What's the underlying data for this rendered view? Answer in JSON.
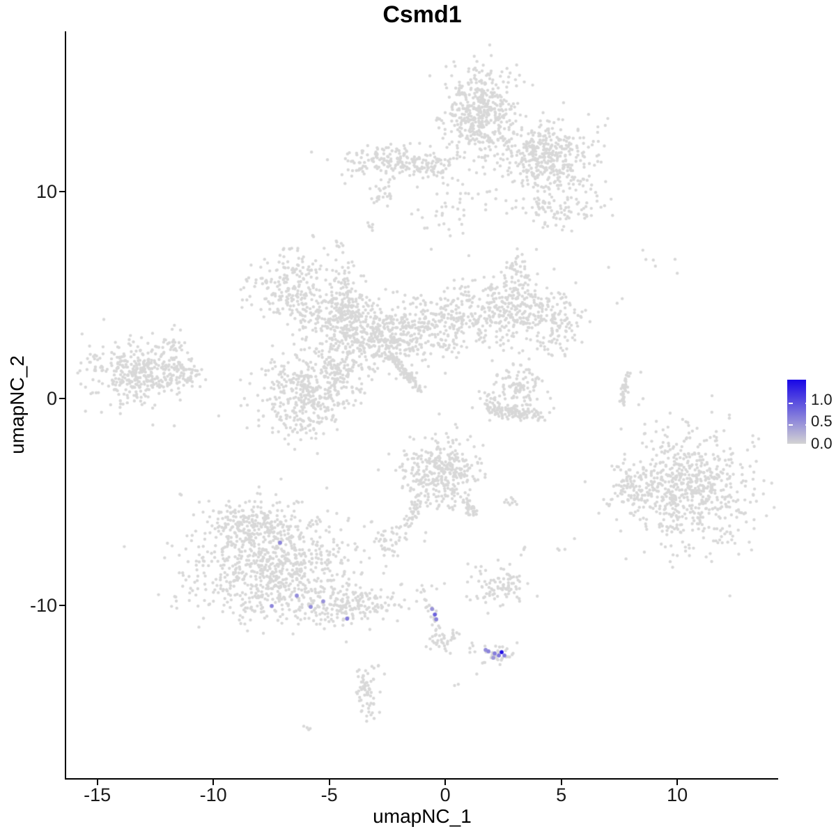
{
  "title": "Csmd1",
  "axes": {
    "x": {
      "label": "umapNC_1",
      "ticks": [
        "-15",
        "-10",
        "-5",
        "0",
        "5",
        "10"
      ],
      "tick_values": [
        -15,
        -10,
        -5,
        0,
        5,
        10
      ],
      "range": [
        -16.34,
        14.35
      ]
    },
    "y": {
      "label": "umapNC_2",
      "ticks": [
        "10",
        "0",
        "-10"
      ],
      "tick_values": [
        10,
        0,
        -10
      ],
      "range": [
        -18.35,
        17.74
      ]
    }
  },
  "legend": {
    "labels": [
      "1.0",
      "0.5",
      "0.0"
    ],
    "label_values": [
      1.0,
      0.5,
      0.0
    ],
    "scale_min": 0.0,
    "scale_max": 1.45,
    "low_color": "#D3D3D3",
    "high_color": "#1806E6"
  },
  "colors": {
    "background": "#FFFFFF",
    "point_gray": "#D8D8D8",
    "axis": "#000000",
    "text": "#1A1A1A"
  },
  "chart_data": {
    "type": "scatter",
    "title": "Csmd1",
    "xlabel": "umapNC_1",
    "ylabel": "umapNC_2",
    "xlim": [
      -16.34,
      14.35
    ],
    "ylim": [
      -18.35,
      17.74
    ],
    "grid": false,
    "legend_position": "right",
    "point_radius_px": 2.2,
    "highlight_radius_px": 2.9,
    "seed": 123456,
    "background_clusters": [
      {
        "name": "top-main",
        "type": "blob",
        "cx": 1.55,
        "cy": 13.9,
        "sdx": 0.8,
        "sdy": 1.2,
        "n": 450
      },
      {
        "name": "top-right-lobe",
        "type": "blob",
        "cx": 4.3,
        "cy": 11.7,
        "sdx": 1.0,
        "sdy": 0.85,
        "n": 380
      },
      {
        "name": "top-left-arm",
        "type": "blob",
        "cx": -2.3,
        "cy": 11.45,
        "sdx": 0.95,
        "sdy": 0.4,
        "n": 160
      },
      {
        "name": "top-arm-bridge",
        "type": "streak",
        "x1": -1.2,
        "y1": 11.2,
        "x2": 0.5,
        "y2": 11.25,
        "jitter": 0.25,
        "n": 50
      },
      {
        "name": "top-left-dots",
        "type": "blob",
        "cx": -3.7,
        "cy": 11.2,
        "sdx": 0.35,
        "sdy": 0.3,
        "n": 10
      },
      {
        "name": "top-below-left-small",
        "type": "blob",
        "cx": -2.8,
        "cy": 9.9,
        "sdx": 0.3,
        "sdy": 0.3,
        "n": 22
      },
      {
        "name": "top-below-left-tiny",
        "type": "blob",
        "cx": -3.25,
        "cy": 8.4,
        "sdx": 0.15,
        "sdy": 0.15,
        "n": 6
      },
      {
        "name": "top-below-scatter",
        "type": "blob",
        "cx": 0.2,
        "cy": 9.0,
        "sdx": 0.9,
        "sdy": 0.7,
        "n": 45
      },
      {
        "name": "top-right-lower",
        "type": "blob",
        "cx": 4.85,
        "cy": 9.2,
        "sdx": 0.9,
        "sdy": 0.55,
        "n": 90
      },
      {
        "name": "top-right-dots",
        "type": "blob",
        "cx": 5.9,
        "cy": 10.45,
        "sdx": 0.3,
        "sdy": 0.3,
        "n": 12
      },
      {
        "name": "mid-upperleft",
        "type": "blob",
        "cx": -6.6,
        "cy": 5.4,
        "sdx": 1.0,
        "sdy": 0.75,
        "n": 210
      },
      {
        "name": "mid-arm1",
        "type": "blob",
        "cx": -5.15,
        "cy": 4.05,
        "sdx": 0.8,
        "sdy": 0.5,
        "n": 110
      },
      {
        "name": "mid-core1",
        "type": "blob",
        "cx": -3.8,
        "cy": 3.5,
        "sdx": 0.85,
        "sdy": 0.8,
        "n": 260
      },
      {
        "name": "mid-core2",
        "type": "blob",
        "cx": -2.2,
        "cy": 2.85,
        "sdx": 0.8,
        "sdy": 0.65,
        "n": 210
      },
      {
        "name": "mid-up-arm",
        "type": "streak",
        "x1": -4.45,
        "y1": 6.3,
        "x2": -4.25,
        "y2": 4.45,
        "jitter": 0.3,
        "n": 45
      },
      {
        "name": "mid-up-dots",
        "type": "blob",
        "cx": -4.5,
        "cy": 7.3,
        "sdx": 0.2,
        "sdy": 0.2,
        "n": 8
      },
      {
        "name": "mid-bridge",
        "type": "blob",
        "cx": -0.9,
        "cy": 3.45,
        "sdx": 0.8,
        "sdy": 0.5,
        "n": 60
      },
      {
        "name": "mid-right1",
        "type": "blob",
        "cx": 0.3,
        "cy": 4.05,
        "sdx": 1.0,
        "sdy": 0.65,
        "n": 160
      },
      {
        "name": "mid-right2",
        "type": "blob",
        "cx": 2.75,
        "cy": 4.2,
        "sdx": 1.0,
        "sdy": 0.9,
        "n": 260
      },
      {
        "name": "mid-right3",
        "type": "blob",
        "cx": 4.85,
        "cy": 3.7,
        "sdx": 0.55,
        "sdy": 0.8,
        "n": 110
      },
      {
        "name": "mid-right-uparm",
        "type": "streak",
        "x1": 2.9,
        "y1": 5.1,
        "x2": 3.1,
        "y2": 6.75,
        "jitter": 0.3,
        "n": 50
      },
      {
        "name": "mid-below-scatter",
        "type": "blob",
        "cx": 0.1,
        "cy": 2.5,
        "sdx": 0.8,
        "sdy": 0.5,
        "n": 30
      },
      {
        "name": "mid-streak",
        "type": "streak",
        "x1": -2.45,
        "y1": 2.15,
        "x2": -1.1,
        "y2": 0.4,
        "jitter": 0.1,
        "n": 90
      },
      {
        "name": "mid-lower-arm",
        "type": "blob",
        "cx": -4.45,
        "cy": 1.6,
        "sdx": 0.55,
        "sdy": 0.8,
        "n": 110
      },
      {
        "name": "mid-lowerleft",
        "type": "blob",
        "cx": -5.9,
        "cy": 0.55,
        "sdx": 1.05,
        "sdy": 0.85,
        "n": 330
      },
      {
        "name": "mid-lowerleft-tail",
        "type": "blob",
        "cx": -6.05,
        "cy": -1.1,
        "sdx": 0.7,
        "sdy": 0.45,
        "n": 70
      },
      {
        "name": "mid-above-dots",
        "type": "blob",
        "cx": -6.65,
        "cy": 7.0,
        "sdx": 0.25,
        "sdy": 0.35,
        "n": 6
      },
      {
        "name": "mid-above-dots2",
        "type": "blob",
        "cx": -5.7,
        "cy": 7.9,
        "sdx": 0.15,
        "sdy": 0.15,
        "n": 3
      },
      {
        "name": "horseshoe-top",
        "type": "blob",
        "cx": 3.2,
        "cy": 0.8,
        "sdx": 0.5,
        "sdy": 0.45,
        "n": 70
      },
      {
        "name": "horseshoe-mid",
        "type": "blob",
        "cx": 2.95,
        "cy": 0.0,
        "sdx": 0.9,
        "sdy": 0.5,
        "n": 45
      },
      {
        "name": "horseshoe-arc",
        "type": "streak",
        "x1": 2.0,
        "y1": -0.55,
        "x2": 4.0,
        "y2": -0.8,
        "jitter": 0.18,
        "n": 110
      },
      {
        "name": "horseshoe-tip",
        "type": "blob",
        "cx": 1.95,
        "cy": -0.2,
        "sdx": 0.2,
        "sdy": 0.2,
        "n": 15
      },
      {
        "name": "farleft-main",
        "type": "blob",
        "cx": -13.1,
        "cy": 1.3,
        "sdx": 1.1,
        "sdy": 0.8,
        "n": 380
      },
      {
        "name": "farleft-tail",
        "type": "streak",
        "x1": -11.85,
        "y1": 1.35,
        "x2": -10.6,
        "y2": 1.2,
        "jitter": 0.25,
        "n": 50
      },
      {
        "name": "farleft-topdots",
        "type": "blob",
        "cx": -11.6,
        "cy": 2.7,
        "sdx": 0.3,
        "sdy": 0.25,
        "n": 14
      },
      {
        "name": "right-sparse-dots",
        "type": "blob",
        "cx": 9.3,
        "cy": 6.65,
        "sdx": 0.95,
        "sdy": 0.28,
        "n": 7
      },
      {
        "name": "right-pair-dots",
        "type": "blob",
        "cx": 7.6,
        "cy": 4.8,
        "sdx": 0.12,
        "sdy": 0.12,
        "n": 2
      },
      {
        "name": "right-thin-streak",
        "type": "streak",
        "x1": 7.8,
        "y1": 1.2,
        "x2": 7.6,
        "y2": -0.35,
        "jitter": 0.07,
        "n": 45
      },
      {
        "name": "right-streak-dots",
        "type": "blob",
        "cx": 8.2,
        "cy": 0.35,
        "sdx": 0.2,
        "sdy": 0.5,
        "n": 3
      },
      {
        "name": "right-main",
        "type": "blob",
        "cx": 10.4,
        "cy": -4.3,
        "sdx": 1.4,
        "sdy": 1.35,
        "n": 680
      },
      {
        "name": "right-side-lobe",
        "type": "blob",
        "cx": 8.0,
        "cy": -4.4,
        "sdx": 0.4,
        "sdy": 0.55,
        "n": 55
      },
      {
        "name": "centerbottom-main",
        "type": "blob",
        "cx": -0.2,
        "cy": -3.5,
        "sdx": 0.85,
        "sdy": 0.75,
        "n": 330
      },
      {
        "name": "centerbottom-lefttail",
        "type": "streak",
        "x1": -1.15,
        "y1": -4.75,
        "x2": -1.6,
        "y2": -6.1,
        "jitter": 0.12,
        "n": 40
      },
      {
        "name": "centerbottom-righttail",
        "type": "streak",
        "x1": 0.85,
        "y1": -4.7,
        "x2": 1.25,
        "y2": -5.7,
        "jitter": 0.15,
        "n": 35
      },
      {
        "name": "small-left-blob",
        "type": "blob",
        "cx": -2.35,
        "cy": -6.8,
        "sdx": 0.35,
        "sdy": 0.4,
        "n": 40
      },
      {
        "name": "small-left-dots",
        "type": "blob",
        "cx": -0.85,
        "cy": -6.5,
        "sdx": 0.1,
        "sdy": 0.35,
        "n": 2
      },
      {
        "name": "small-right-tiny",
        "type": "blob",
        "cx": 2.75,
        "cy": -4.95,
        "sdx": 0.22,
        "sdy": 0.12,
        "n": 9
      },
      {
        "name": "small-dot1",
        "type": "blob",
        "cx": 3.4,
        "cy": -7.3,
        "sdx": 0.12,
        "sdy": 0.12,
        "n": 3
      },
      {
        "name": "small-dot2",
        "type": "blob",
        "cx": 5.0,
        "cy": -7.2,
        "sdx": 0.15,
        "sdy": 0.25,
        "n": 3
      },
      {
        "name": "bottomleft-main",
        "type": "blob",
        "cx": -7.4,
        "cy": -8.1,
        "sdx": 1.75,
        "sdy": 1.35,
        "n": 850
      },
      {
        "name": "bottomleft-top",
        "type": "blob",
        "cx": -8.45,
        "cy": -5.9,
        "sdx": 0.75,
        "sdy": 0.55,
        "n": 130
      },
      {
        "name": "bottomleft-arm",
        "type": "blob",
        "cx": -4.2,
        "cy": -10.0,
        "sdx": 0.95,
        "sdy": 0.5,
        "n": 160
      },
      {
        "name": "bottomleft-armdots",
        "type": "blob",
        "cx": -2.4,
        "cy": -10.0,
        "sdx": 0.5,
        "sdy": 0.3,
        "n": 10
      },
      {
        "name": "chain-streak",
        "type": "streak",
        "x1": -0.65,
        "y1": -10.05,
        "x2": -0.25,
        "y2": -11.6,
        "jitter": 0.1,
        "n": 20
      },
      {
        "name": "chain-blob",
        "type": "blob",
        "cx": -0.2,
        "cy": -11.8,
        "sdx": 0.28,
        "sdy": 0.25,
        "n": 28
      },
      {
        "name": "chain-side",
        "type": "blob",
        "cx": 0.4,
        "cy": -11.5,
        "sdx": 0.3,
        "sdy": 0.15,
        "n": 8
      },
      {
        "name": "chain-topdot",
        "type": "blob",
        "cx": -0.8,
        "cy": -9.75,
        "sdx": 0.1,
        "sdy": 0.1,
        "n": 2
      },
      {
        "name": "chain-rightdots",
        "type": "blob",
        "cx": 0.8,
        "cy": -12.0,
        "sdx": 0.3,
        "sdy": 0.15,
        "n": 3
      },
      {
        "name": "bottommid-gray",
        "type": "blob",
        "cx": 2.25,
        "cy": -12.45,
        "sdx": 0.5,
        "sdy": 0.3,
        "n": 35
      },
      {
        "name": "bottommid-upper",
        "type": "blob",
        "cx": 2.35,
        "cy": -9.1,
        "sdx": 0.65,
        "sdy": 0.55,
        "n": 90
      },
      {
        "name": "bottommid-leftbits",
        "type": "blob",
        "cx": -0.95,
        "cy": -9.3,
        "sdx": 0.28,
        "sdy": 0.28,
        "n": 10
      },
      {
        "name": "bottom-small-vertical",
        "type": "blob",
        "cx": -3.4,
        "cy": -14.2,
        "sdx": 0.28,
        "sdy": 0.78,
        "n": 65
      },
      {
        "name": "bottom-dot-pair",
        "type": "blob",
        "cx": -5.9,
        "cy": -15.9,
        "sdx": 0.16,
        "sdy": 0.1,
        "n": 4
      },
      {
        "name": "bottom-right-dot",
        "type": "blob",
        "cx": 0.55,
        "cy": -13.8,
        "sdx": 0.1,
        "sdy": 0.1,
        "n": 2
      }
    ],
    "highlighted_cells": [
      {
        "x": -7.12,
        "y": -6.97,
        "expression": 0.55
      },
      {
        "x": -6.4,
        "y": -9.53,
        "expression": 0.5
      },
      {
        "x": -7.48,
        "y": -10.03,
        "expression": 0.55
      },
      {
        "x": -5.8,
        "y": -10.07,
        "expression": 0.5
      },
      {
        "x": -5.26,
        "y": -9.8,
        "expression": 0.45
      },
      {
        "x": -4.23,
        "y": -10.64,
        "expression": 0.6
      },
      {
        "x": -0.57,
        "y": -10.17,
        "expression": 0.45
      },
      {
        "x": -0.45,
        "y": -10.44,
        "expression": 0.8
      },
      {
        "x": -0.39,
        "y": -10.67,
        "expression": 0.55
      },
      {
        "x": 1.74,
        "y": -12.15,
        "expression": 0.5
      },
      {
        "x": 1.86,
        "y": -12.22,
        "expression": 0.55
      },
      {
        "x": 2.13,
        "y": -12.32,
        "expression": 0.6
      },
      {
        "x": 2.31,
        "y": -12.42,
        "expression": 0.65
      },
      {
        "x": 2.43,
        "y": -12.26,
        "expression": 1.4
      },
      {
        "x": 2.55,
        "y": -12.42,
        "expression": 0.6
      },
      {
        "x": 2.07,
        "y": -12.53,
        "expression": 0.4
      }
    ]
  }
}
